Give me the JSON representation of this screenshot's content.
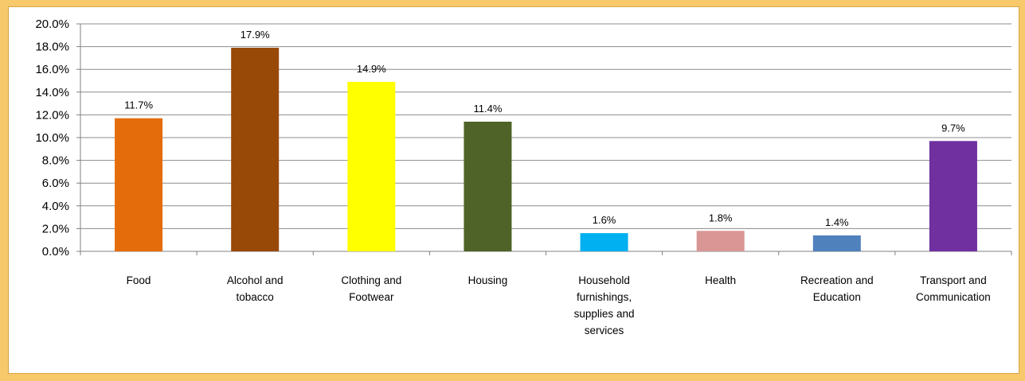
{
  "chart_data": {
    "type": "bar",
    "categories": [
      [
        "Food"
      ],
      [
        "Alcohol and",
        "tobacco"
      ],
      [
        "Clothing and",
        "Footwear"
      ],
      [
        "Housing"
      ],
      [
        "Household",
        "furnishings,",
        "supplies and",
        "services"
      ],
      [
        "Health"
      ],
      [
        "Recreation and",
        "Education"
      ],
      [
        "Transport and",
        "Communication"
      ]
    ],
    "values": [
      11.7,
      17.9,
      14.9,
      11.4,
      1.6,
      1.8,
      1.4,
      9.7
    ],
    "data_labels": [
      "11.7%",
      "17.9%",
      "14.9%",
      "11.4%",
      "1.6%",
      "1.8%",
      "1.4%",
      "9.7%"
    ],
    "colors": [
      "#e46c0a",
      "#984807",
      "#ffff00",
      "#4f6228",
      "#00b0f0",
      "#d99694",
      "#4f81bd",
      "#7030a0"
    ],
    "ylim": [
      0,
      20
    ],
    "yticks": [
      "0.0%",
      "2.0%",
      "4.0%",
      "6.0%",
      "8.0%",
      "10.0%",
      "12.0%",
      "14.0%",
      "16.0%",
      "18.0%",
      "20.0%"
    ],
    "grid": true
  }
}
